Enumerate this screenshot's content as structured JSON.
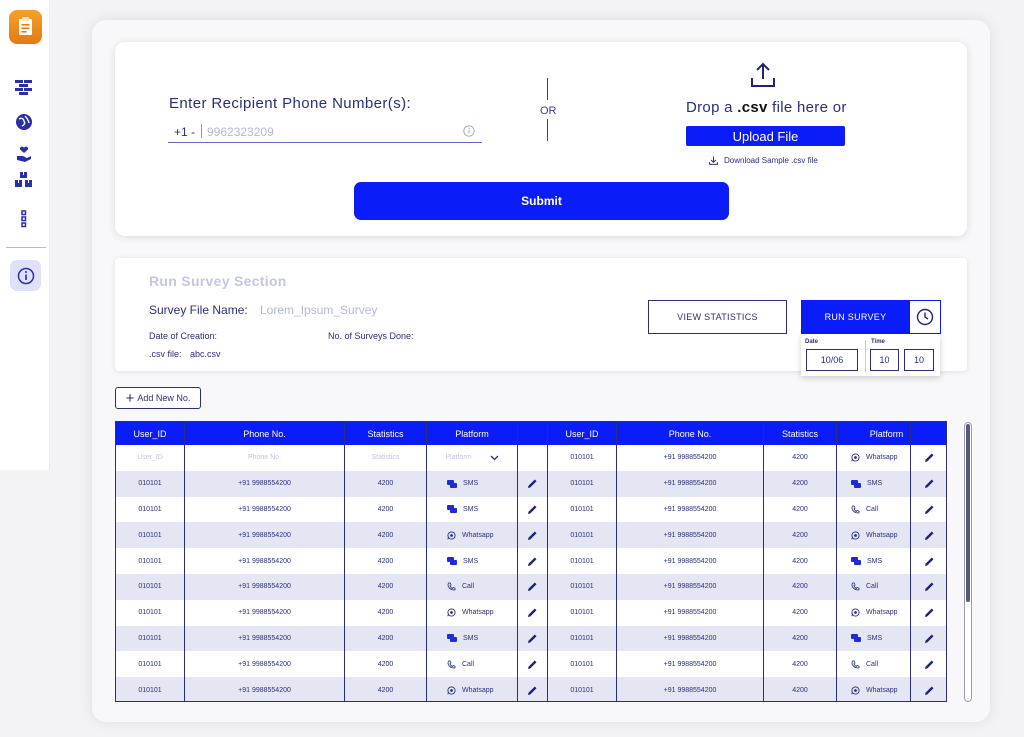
{
  "sidebar": {
    "logo_icon": "survey-app-logo",
    "items": [
      {
        "name": "wall-icon"
      },
      {
        "name": "globe-icon"
      },
      {
        "name": "hand-heart-icon"
      },
      {
        "name": "boxes-icon"
      },
      {
        "name": "more-vertical-icon"
      }
    ],
    "info_icon": "info-icon"
  },
  "recipient": {
    "title": "Enter Recipient Phone Number(s):",
    "prefix": "+1 -",
    "placeholder": "9962323209",
    "or_label": "OR",
    "drop_prefix": "Drop a ",
    "drop_ext": ".csv",
    "drop_suffix": " file here or",
    "upload_label": "Upload File",
    "download_label": "Download Sample .csv file",
    "submit_label": "Submit"
  },
  "survey": {
    "section_title": "Run Survey Section",
    "file_name_label": "Survey File Name:",
    "file_name_value": "Lorem_Ipsum_Survey",
    "date_creation_label": "Date of Creation:",
    "surveys_done_label": "No. of Surveys Done:",
    "csv_label": ".csv file:",
    "csv_value": "abc.csv",
    "view_stats_label": "VIEW STATISTICS",
    "run_label": "RUN SURVEY",
    "date_label": "Date",
    "time_label": "Time",
    "date_value": "10/06",
    "hour_value": "10",
    "minute_value": "10"
  },
  "add_new_label": "Add New No.",
  "table": {
    "headers": [
      "User_ID",
      "Phone No.",
      "Statistics",
      "Platform",
      "User_ID",
      "Phone No.",
      "Statistics",
      "Platform"
    ],
    "placeholders": {
      "user_id": "User_ID",
      "phone": "Phone No.",
      "statistics": "Statistics",
      "platform": "Platform"
    },
    "left_rows": [
      {
        "user_id": "010101",
        "phone": "+91 9988554200",
        "stats": "4200",
        "platform": "SMS"
      },
      {
        "user_id": "010101",
        "phone": "+91 9988554200",
        "stats": "4200",
        "platform": "SMS"
      },
      {
        "user_id": "010101",
        "phone": "+91 9988554200",
        "stats": "4200",
        "platform": "Whatsapp"
      },
      {
        "user_id": "010101",
        "phone": "+91 9988554200",
        "stats": "4200",
        "platform": "SMS"
      },
      {
        "user_id": "010101",
        "phone": "+91 9988554200",
        "stats": "4200",
        "platform": "Call"
      },
      {
        "user_id": "010101",
        "phone": "+91 9988554200",
        "stats": "4200",
        "platform": "Whatsapp"
      },
      {
        "user_id": "010101",
        "phone": "+91 9988554200",
        "stats": "4200",
        "platform": "SMS"
      },
      {
        "user_id": "010101",
        "phone": "+91 9988554200",
        "stats": "4200",
        "platform": "Call"
      },
      {
        "user_id": "010101",
        "phone": "+91 9988554200",
        "stats": "4200",
        "platform": "Whatsapp"
      }
    ],
    "right_rows": [
      {
        "user_id": "010101",
        "phone": "+91 9988554200",
        "stats": "4200",
        "platform": "Whatsapp"
      },
      {
        "user_id": "010101",
        "phone": "+91 9988554200",
        "stats": "4200",
        "platform": "SMS"
      },
      {
        "user_id": "010101",
        "phone": "+91 9988554200",
        "stats": "4200",
        "platform": "Call"
      },
      {
        "user_id": "010101",
        "phone": "+91 9988554200",
        "stats": "4200",
        "platform": "Whatsapp"
      },
      {
        "user_id": "010101",
        "phone": "+91 9988554200",
        "stats": "4200",
        "platform": "SMS"
      },
      {
        "user_id": "010101",
        "phone": "+91 9988554200",
        "stats": "4200",
        "platform": "Call"
      },
      {
        "user_id": "010101",
        "phone": "+91 9988554200",
        "stats": "4200",
        "platform": "Whatsapp"
      },
      {
        "user_id": "010101",
        "phone": "+91 9988554200",
        "stats": "4200",
        "platform": "SMS"
      },
      {
        "user_id": "010101",
        "phone": "+91 9988554200",
        "stats": "4200",
        "platform": "Call"
      },
      {
        "user_id": "010101",
        "phone": "+91 9988554200",
        "stats": "4200",
        "platform": "Whatsapp"
      }
    ]
  },
  "colors": {
    "accent": "#0a1cf7",
    "text": "#2a2f7a",
    "row_stripe": "#e4e6f4",
    "logo": "#f08c1e"
  }
}
